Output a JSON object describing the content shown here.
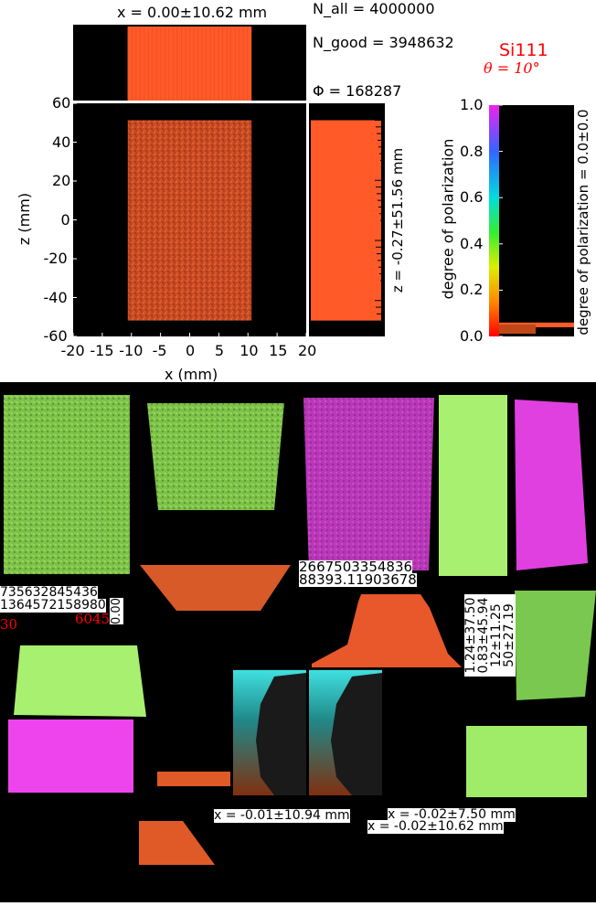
{
  "main_plot": {
    "type": "heatmap",
    "x_label": "x (mm)",
    "y_label": "z (mm)",
    "x_ticks": [
      "-20",
      "-15",
      "-10",
      "-5",
      "0",
      "5",
      "10",
      "15",
      "20"
    ],
    "z_ticks": [
      "60",
      "40",
      "20",
      "0",
      "-20",
      "-40",
      "-60"
    ],
    "x_range": [
      -20,
      20
    ],
    "z_range": [
      -60,
      60
    ],
    "beam_x_extent": [
      -10.62,
      10.62
    ],
    "beam_z_extent": [
      -51.83,
      51.29
    ],
    "x_stat": "x = 0.00±10.62 mm",
    "z_stat": "z = -0.27±51.56 mm"
  },
  "stats": {
    "n_all": "N_all = 4000000",
    "n_good": "N_good = 3948632",
    "flux": "Φ = 168287"
  },
  "title": {
    "crystal": "Si111",
    "theta": "θ = 10°"
  },
  "colorbar": {
    "label": "degree of polarization",
    "ticks": [
      "1.0",
      "0.8",
      "0.6",
      "0.4",
      "0.2",
      "0.0"
    ],
    "range": [
      0,
      1
    ],
    "stat": "degree of polarization = 0.0±0.0",
    "histogram_peak_value": 0.06
  },
  "thumbnails": {
    "fragment_a1": "735632845436",
    "fragment_a2": "1364572158980",
    "fragment_a3": "30",
    "fragment_a4": "6045",
    "fragment_a5": "0.00",
    "fragment_b1": "2667503354836",
    "fragment_b2": "88393.11903678",
    "fragment_vertical": [
      "1.24±37.50",
      "0.83±45.94",
      "12±11.25",
      "50±27.19"
    ],
    "stat_1": "x = -0.01±10.94 mm",
    "stat_2": "x = -0.02±7.50 mm",
    "stat_3": "x = -0.02±10.62 mm"
  },
  "chart_data": [
    {
      "type": "heatmap",
      "xlabel": "x (mm)",
      "ylabel": "z (mm)",
      "xlim": [
        -20,
        20
      ],
      "ylim": [
        -60,
        60
      ],
      "beam_x_extent": [
        -10.62,
        10.62
      ],
      "beam_z_extent": [
        -51.83,
        51.29
      ],
      "x_mean": 0.0,
      "x_std": 10.62,
      "z_mean": -0.27,
      "z_std": 51.56,
      "n_all": 4000000,
      "n_good": 3948632,
      "flux": 168287
    },
    {
      "type": "bar",
      "name": "degree of polarization",
      "ylim": [
        0,
        1
      ],
      "peak": 0.06,
      "mean": 0.0,
      "std": 0.0
    }
  ],
  "colors": {
    "beam": "#e05128",
    "hist": "#ff5a28",
    "green": "#8fd85a",
    "magenta": "#e040e0",
    "cyan": "#40e0e0",
    "title": "#ff0000"
  }
}
